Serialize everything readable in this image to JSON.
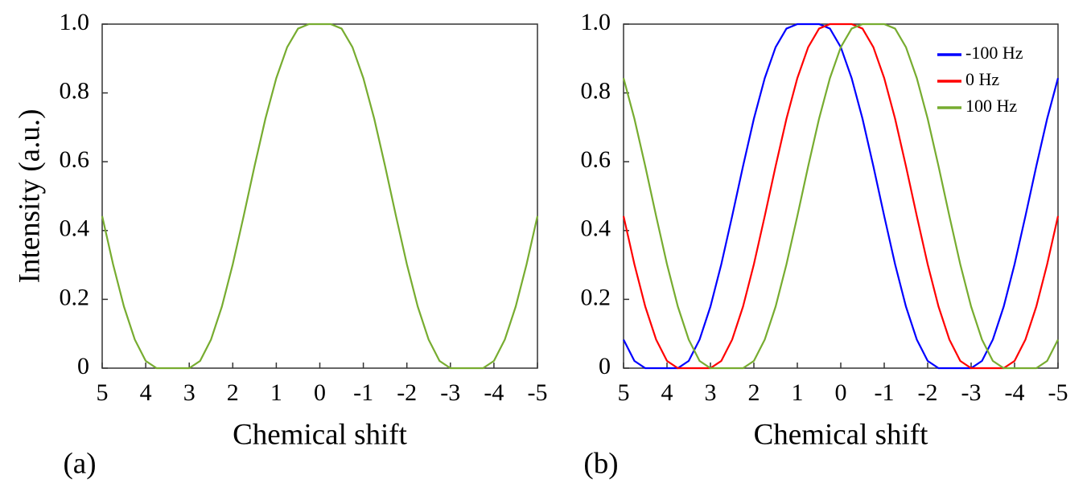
{
  "chart_data": [
    {
      "type": "line",
      "panel_label": "(a)",
      "xlabel": "Chemical shift",
      "ylabel": "Intensity (a.u.)",
      "x": [
        5,
        4.75,
        4.5,
        4.25,
        4,
        3.75,
        3.5,
        3.25,
        3,
        2.75,
        2.5,
        2.25,
        2,
        1.75,
        1.5,
        1.25,
        1,
        0.75,
        0.5,
        0.25,
        0,
        -0.25,
        -0.5,
        -0.75,
        -1,
        -1.25,
        -1.5,
        -1.75,
        -2,
        -2.25,
        -2.5,
        -2.75,
        -3,
        -3.25,
        -3.5,
        -3.75,
        -4,
        -4.25,
        -4.5,
        -4.75,
        -5
      ],
      "values": [
        0.442,
        0.302,
        0.179,
        0.083,
        0.021,
        0,
        0,
        0,
        0,
        0.021,
        0.083,
        0.179,
        0.302,
        0.442,
        0.587,
        0.725,
        0.843,
        0.933,
        0.987,
        1,
        1,
        1,
        0.987,
        0.933,
        0.843,
        0.725,
        0.587,
        0.442,
        0.302,
        0.179,
        0.083,
        0.021,
        0,
        0,
        0,
        0,
        0.021,
        0.083,
        0.179,
        0.302,
        0.442
      ],
      "color": "#77ac30",
      "xlim": [
        5,
        -5
      ],
      "xticks": [
        5,
        4,
        3,
        2,
        1,
        0,
        -1,
        -2,
        -3,
        -4,
        -5
      ],
      "ylim": [
        0,
        1
      ],
      "yticks": [
        0,
        0.2,
        0.4,
        0.6,
        0.8,
        {
          "value": 1,
          "label": "1.0"
        }
      ]
    },
    {
      "type": "line",
      "panel_label": "(b)",
      "xlabel": "Chemical shift",
      "x": [
        5,
        4.75,
        4.5,
        4.25,
        4,
        3.75,
        3.5,
        3.25,
        3,
        2.75,
        2.5,
        2.25,
        2,
        1.75,
        1.5,
        1.25,
        1,
        0.75,
        0.5,
        0.25,
        0,
        -0.25,
        -0.5,
        -0.75,
        -1,
        -1.25,
        -1.5,
        -1.75,
        -2,
        -2.25,
        -2.5,
        -2.75,
        -3,
        -3.25,
        -3.5,
        -3.75,
        -4,
        -4.25,
        -4.5,
        -4.75,
        -5
      ],
      "series": [
        {
          "name": "-100 Hz",
          "color": "#0000ff",
          "values": [
            0.083,
            0.021,
            0,
            0,
            0,
            0,
            0.021,
            0.083,
            0.179,
            0.302,
            0.442,
            0.587,
            0.725,
            0.843,
            0.933,
            0.987,
            1,
            1,
            1,
            0.987,
            0.933,
            0.843,
            0.725,
            0.587,
            0.442,
            0.302,
            0.179,
            0.083,
            0.021,
            0,
            0,
            0,
            0,
            0.021,
            0.083,
            0.179,
            0.302,
            0.442,
            0.587,
            0.725,
            0.843
          ]
        },
        {
          "name": "0 Hz",
          "color": "#ff0000",
          "values": [
            0.442,
            0.302,
            0.179,
            0.083,
            0.021,
            0,
            0,
            0,
            0,
            0.021,
            0.083,
            0.179,
            0.302,
            0.442,
            0.587,
            0.725,
            0.843,
            0.933,
            0.987,
            1,
            1,
            1,
            0.987,
            0.933,
            0.843,
            0.725,
            0.587,
            0.442,
            0.302,
            0.179,
            0.083,
            0.021,
            0,
            0,
            0,
            0,
            0.021,
            0.083,
            0.179,
            0.302,
            0.442
          ]
        },
        {
          "name": "100 Hz",
          "color": "#77ac30",
          "values": [
            0.843,
            0.725,
            0.587,
            0.442,
            0.302,
            0.179,
            0.083,
            0.021,
            0,
            0,
            0,
            0,
            0.021,
            0.083,
            0.179,
            0.302,
            0.442,
            0.587,
            0.725,
            0.843,
            0.933,
            0.987,
            1,
            1,
            1,
            0.987,
            0.933,
            0.843,
            0.725,
            0.587,
            0.442,
            0.302,
            0.179,
            0.083,
            0.021,
            0,
            0,
            0,
            0,
            0.021,
            0.083
          ]
        }
      ],
      "legend": "upper right",
      "xlim": [
        5,
        -5
      ],
      "xticks": [
        5,
        4,
        3,
        2,
        1,
        0,
        -1,
        -2,
        -3,
        -4,
        -5
      ],
      "ylim": [
        0,
        1
      ],
      "yticks": [
        0,
        0.2,
        0.4,
        0.6,
        0.8,
        {
          "value": 1,
          "label": "1.0"
        }
      ]
    }
  ]
}
